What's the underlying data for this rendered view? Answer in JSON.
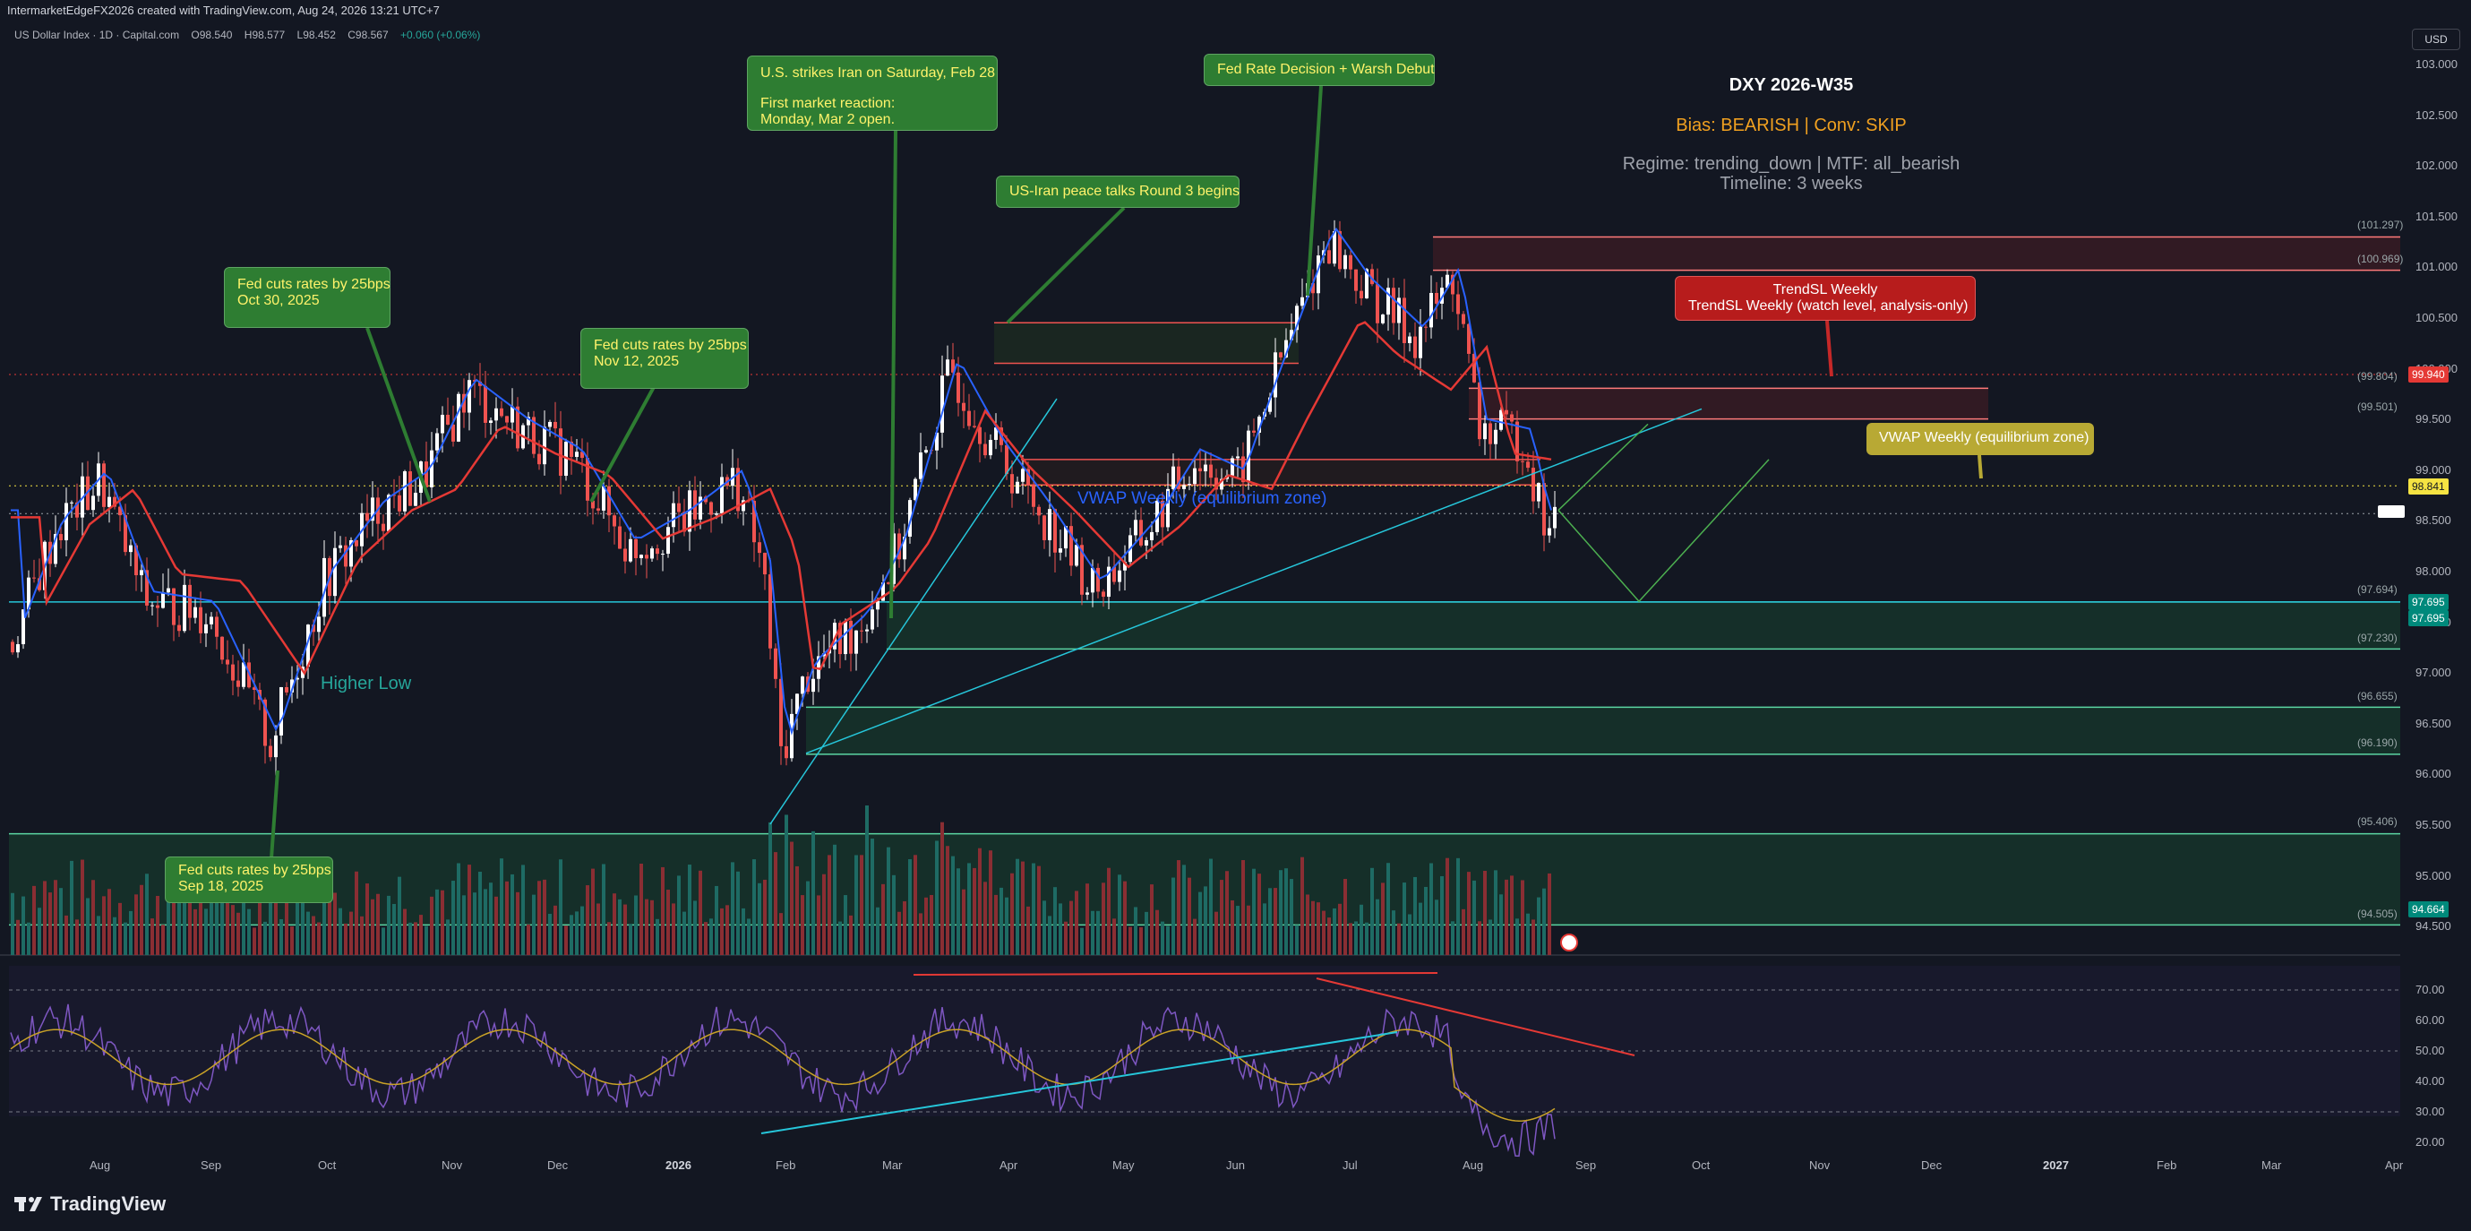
{
  "credit": "IntermarketEdgeFX2026 created with TradingView.com, Aug 24, 2026 13:21 UTC+7",
  "symbol": {
    "name": "US Dollar Index · 1D · Capital.com",
    "o": "O98.540",
    "h": "H98.577",
    "l": "L98.452",
    "c": "C98.567",
    "chg": "+0.060 (+0.06%)"
  },
  "currency_button": "USD",
  "info": {
    "title": "DXY 2026-W35",
    "bias": "Bias: BEARISH | Conv: SKIP",
    "regime": "Regime: trending_down | MTF: all_bearish",
    "timeline": "Timeline: 3 weeks"
  },
  "annotations": {
    "iran": {
      "line1": "U.S. strikes Iran on Saturday, Feb 28",
      "line2": "First market reaction:",
      "line3": "Monday, Mar 2 open."
    },
    "fed_warsh": "Fed Rate Decision + Warsh Debut",
    "peace": "US-Iran peace talks Round 3 begins",
    "fed_oct": {
      "line1": "Fed cuts rates by 25bps",
      "line2": "Oct 30, 2025"
    },
    "fed_nov": {
      "line1": "Fed cuts rates by 25bps",
      "line2": "Nov 12, 2025"
    },
    "fed_sep": {
      "line1": "Fed cuts rates by 25bps",
      "line2": "Sep 18, 2025"
    },
    "trendsl": {
      "line1": "TrendSL Weekly",
      "line2": "TrendSL Weekly (watch level, analysis-only)"
    },
    "vwap_zone": "VWAP Weekly (equilibrium zone)",
    "higher_low": "Higher Low",
    "vwap_inline": "VWAP Weekly (equilibrium zone)"
  },
  "zone_labels": {
    "z1": "(101.297)",
    "z2": "(100.969)",
    "z3": "(99.804)",
    "z4": "(99.501)",
    "z5": "(97.694)",
    "z6": "(97.230)",
    "z7": "(96.655)",
    "z8": "(96.190)",
    "z9": "(95.406)",
    "z10": "(94.505)"
  },
  "price_axis": [
    "103.000",
    "102.500",
    "102.000",
    "101.500",
    "101.000",
    "100.500",
    "100.000",
    "99.500",
    "99.000",
    "98.500",
    "98.000",
    "97.500",
    "97.000",
    "96.500",
    "96.000",
    "95.500",
    "95.000",
    "94.500"
  ],
  "rsi_axis": [
    "70.00",
    "60.00",
    "50.00",
    "40.00",
    "30.00",
    "20.00"
  ],
  "badges": {
    "b1": "99.940",
    "b2": "98.841",
    "b3": "97.695",
    "b4": "97.695",
    "b5": "94.664"
  },
  "time_axis": [
    "Aug",
    "Sep",
    "Oct",
    "Nov",
    "Dec",
    "2026",
    "Feb",
    "Mar",
    "Apr",
    "May",
    "Jun",
    "Jul",
    "Aug",
    "Sep",
    "Oct",
    "Nov",
    "Dec",
    "2027",
    "Feb",
    "Mar",
    "Apr"
  ],
  "brand": "TradingView",
  "colors": {
    "background": "#131722",
    "bull": "#26a69a",
    "bear": "#ef5350",
    "ma_fast": "#2962ff",
    "ma_slow": "#e53935",
    "rsi": "#7e57c2",
    "rsi_ma": "#c9a227",
    "bias": "#f0a020"
  },
  "icons": {
    "brand": "tradingview-logo-icon",
    "flag": "us-flag-icon"
  }
}
